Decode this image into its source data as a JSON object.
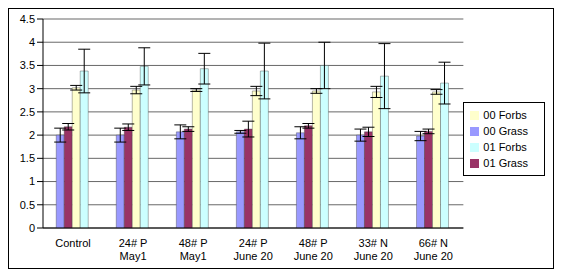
{
  "chart_data": {
    "type": "bar",
    "categories": [
      "Control",
      "24# P\nMay1",
      "48# P\nMay1",
      "24# P\nJune 20",
      "48# P\nJune 20",
      "33# N\nJune 20",
      "66# N\nJune 20"
    ],
    "series": [
      {
        "name": "00 Grass",
        "color": "#9999ff",
        "values": [
          2.0,
          2.0,
          2.07,
          2.07,
          2.05,
          2.0,
          1.98
        ],
        "errors": [
          0.15,
          0.15,
          0.15,
          0.03,
          0.13,
          0.13,
          0.1
        ]
      },
      {
        "name": "01 Grass",
        "color": "#993366",
        "values": [
          2.18,
          2.17,
          2.13,
          2.13,
          2.2,
          2.07,
          2.08
        ],
        "errors": [
          0.07,
          0.07,
          0.05,
          0.17,
          0.05,
          0.1,
          0.05
        ]
      },
      {
        "name": "00 Forbs",
        "color": "#ffffcc",
        "values": [
          3.02,
          2.97,
          2.97,
          2.95,
          2.95,
          2.93,
          2.93
        ],
        "errors": [
          0.05,
          0.08,
          0.03,
          0.1,
          0.05,
          0.12,
          0.05
        ]
      },
      {
        "name": "01 Forbs",
        "color": "#ccffff",
        "values": [
          3.38,
          3.48,
          3.43,
          3.38,
          3.5,
          3.27,
          3.12
        ],
        "errors": [
          0.47,
          0.4,
          0.33,
          0.6,
          0.5,
          0.7,
          0.45
        ]
      }
    ],
    "ylim": [
      0,
      4.5
    ],
    "yticks": [
      0,
      0.5,
      1,
      1.5,
      2,
      2.5,
      3,
      3.5,
      4,
      4.5
    ],
    "grid": true,
    "legend": "right"
  }
}
